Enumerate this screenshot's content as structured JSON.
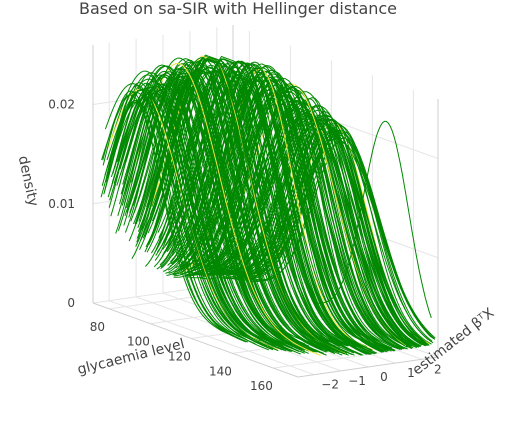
{
  "chart_data": {
    "type": "line3d",
    "title": "Based on sa-SIR with Hellinger distance",
    "x_axis": {
      "label": "glycaemia level",
      "ticks": [
        80,
        100,
        120,
        140,
        160
      ],
      "range": [
        72,
        172
      ]
    },
    "y_axis": {
      "label": "estimated βᵀX",
      "ticks": [
        -2,
        -1,
        0,
        1,
        2
      ],
      "range": [
        -2.6,
        2.6
      ]
    },
    "z_axis": {
      "label": "density",
      "ticks": [
        0,
        0.01,
        0.02
      ],
      "tick_labels": [
        "0",
        "0.01",
        "0.02"
      ],
      "range": [
        0,
        0.026
      ]
    },
    "series": [
      {
        "color": "#008800",
        "count": 240,
        "description_ignored": false
      },
      {
        "color": "#f0e442",
        "count": 6
      }
    ],
    "curve_model": {
      "beta_range": [
        -2.3,
        2.5
      ],
      "peak_mean_at_beta_min": 88,
      "peak_mean_at_beta_max": 128,
      "sd": 16,
      "peak_density": 0.025,
      "floor_density": 0.0012,
      "outlier": {
        "beta": 2.35,
        "mean": 150,
        "sd": 11,
        "peak": 0.021
      }
    },
    "grid": true
  }
}
